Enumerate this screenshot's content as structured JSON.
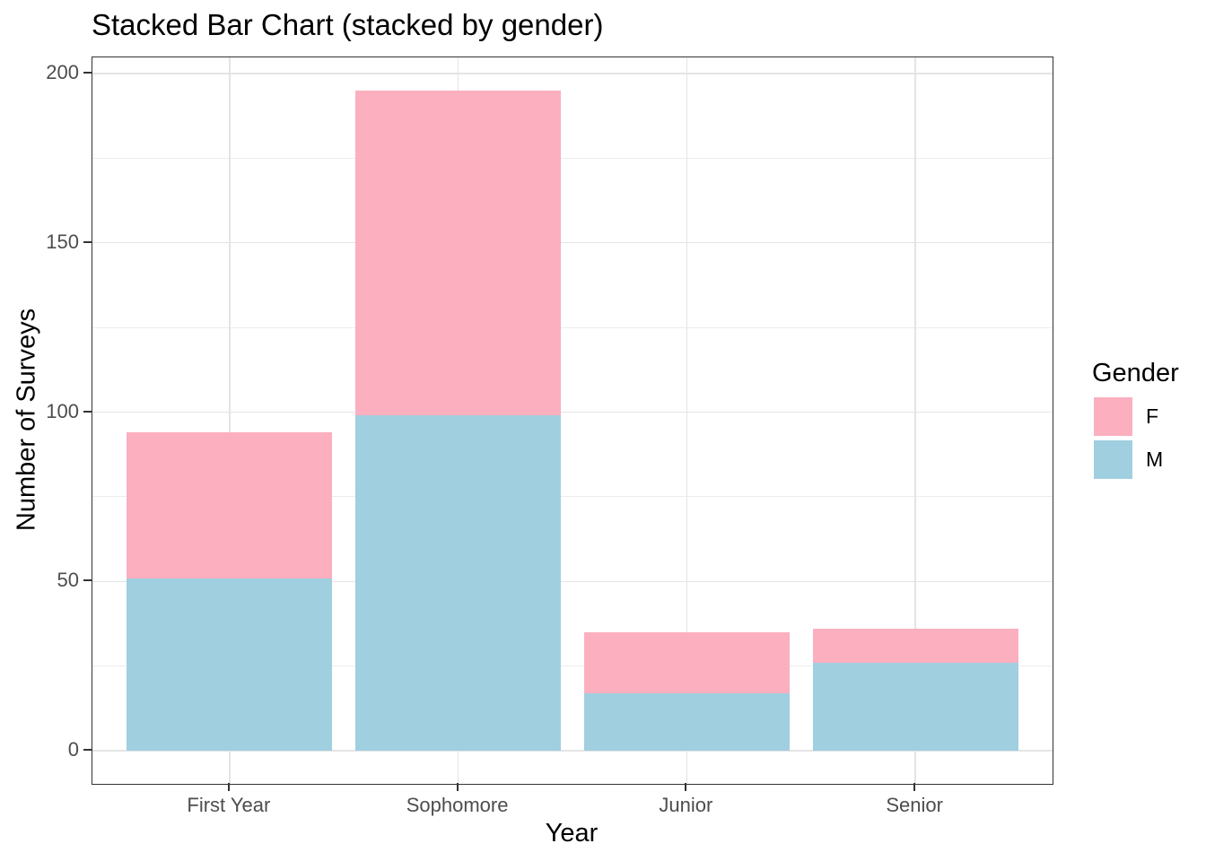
{
  "chart_data": {
    "type": "bar",
    "stacked": true,
    "title": "Stacked Bar Chart (stacked by gender)",
    "xlabel": "Year",
    "ylabel": "Number of Surveys",
    "categories": [
      "First Year",
      "Sophomore",
      "Junior",
      "Senior"
    ],
    "series": [
      {
        "name": "F",
        "color": "#FBAFBF",
        "values": [
          43,
          96,
          18,
          10
        ]
      },
      {
        "name": "M",
        "color": "#A0CFE0",
        "values": [
          51,
          99,
          17,
          26
        ]
      }
    ],
    "stack_order": [
      "M",
      "F"
    ],
    "y_major_ticks": [
      0,
      50,
      100,
      150,
      200
    ],
    "y_minor_ticks": [
      25,
      75,
      125,
      175
    ],
    "ylim": [
      -9.75,
      204.75
    ],
    "grid": true,
    "legend": {
      "title": "Gender",
      "position": "right",
      "entries": [
        "F",
        "M"
      ]
    },
    "colors": {
      "grid_major": "#E4E4E4",
      "grid_minor": "#ECECEC",
      "panel_border": "#333333",
      "tick_mark": "#333333",
      "tick_label": "#4D4D4D",
      "text": "#000000",
      "background": "#FFFFFF"
    }
  }
}
